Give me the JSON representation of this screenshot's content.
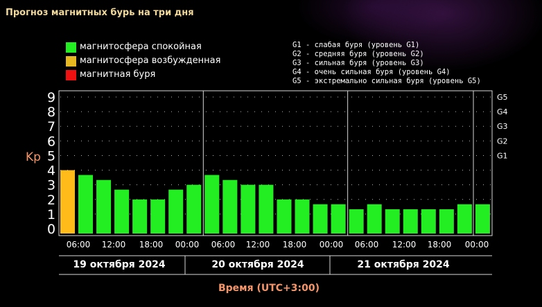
{
  "title": "Прогноз магнитных бурь на три дня",
  "legend": [
    {
      "label": "магнитосфера спокойная",
      "color": "#22ee22"
    },
    {
      "label": "магнитосфера возбужденная",
      "color": "#e8b820"
    },
    {
      "label": "магнитная буря",
      "color": "#ee1111"
    }
  ],
  "g_levels": [
    "G1 - слабая буря (уровень G1)",
    "G2 - средняя буря (уровень G2)",
    "G3 - сильная буря (уровень G3)",
    "G4 - очень сильная буря (уровень G4)",
    "G5 - экстремально сильная буря (уровень G5)"
  ],
  "chart_data": {
    "type": "bar",
    "ylabel": "Kp",
    "xlabel": "Время (UTC+3:00)",
    "ylim": [
      0,
      9
    ],
    "yticks": [
      "0",
      "1",
      "2",
      "3",
      "4",
      "5",
      "6",
      "7",
      "8",
      "9"
    ],
    "right_ticks": [
      {
        "label": "G1",
        "value": 5
      },
      {
        "label": "G2",
        "value": 6
      },
      {
        "label": "G3",
        "value": 7
      },
      {
        "label": "G4",
        "value": 8
      },
      {
        "label": "G5",
        "value": 9
      }
    ],
    "xtick_labels": [
      "06:00",
      "12:00",
      "18:00",
      "00:00",
      "06:00",
      "12:00",
      "18:00",
      "00:00",
      "06:00",
      "12:00",
      "18:00",
      "00:00"
    ],
    "days": [
      "19 октября 2024",
      "20 октября 2024",
      "21 октября 2024"
    ],
    "values": [
      4,
      3.67,
      3.33,
      2.67,
      2,
      2,
      2.67,
      3,
      3.67,
      3.33,
      3,
      3,
      2,
      2,
      1.67,
      1.67,
      1.33,
      1.67,
      1.33,
      1.33,
      1.33,
      1.33,
      1.67,
      1.67
    ],
    "colors": {
      "quiet": "#22ee22",
      "active": "#ffbb1a",
      "storm": "#ee1111"
    },
    "grid": true
  }
}
